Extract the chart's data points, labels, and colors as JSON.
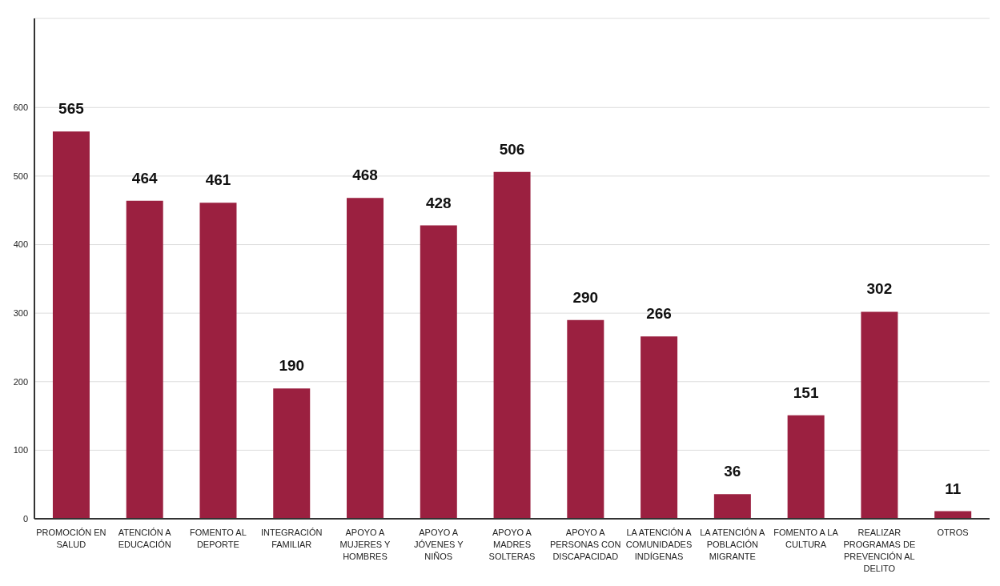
{
  "chart_data": {
    "type": "bar",
    "categories": [
      "PROMOCIÓN EN SALUD",
      "ATENCIÓN A EDUCACIÓN",
      "FOMENTO AL DEPORTE",
      "INTEGRACIÓN FAMILIAR",
      "APOYO A MUJERES Y HOMBRES",
      "APOYO A JÓVENES Y NIÑOS",
      "APOYO A MADRES SOLTERAS",
      "APOYO A PERSONAS CON DISCAPACIDAD",
      "LA ATENCIÓN A COMUNIDADES INDÍGENAS",
      "LA ATENCIÓN A POBLACIÓN MIGRANTE",
      "FOMENTO A LA CULTURA",
      "REALIZAR PROGRAMAS DE PREVENCIÓN AL DELITO",
      "OTROS"
    ],
    "values": [
      565,
      464,
      461,
      190,
      468,
      428,
      506,
      290,
      266,
      36,
      151,
      302,
      11
    ],
    "color": "#9b2040",
    "ylim": [
      0,
      730
    ],
    "yticks": [
      0,
      100,
      200,
      300,
      400,
      500,
      600
    ],
    "grid": "y",
    "data_labels": true
  }
}
